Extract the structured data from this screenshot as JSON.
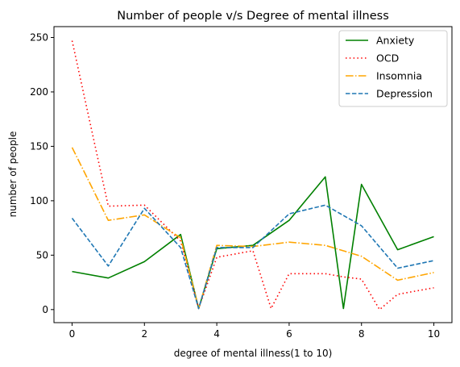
{
  "chart_data": {
    "type": "line",
    "title": "Number of people v/s Degree of mental illness",
    "xlabel": "degree of mental illness(1 to 10)",
    "ylabel": "number of people",
    "xlim": [
      -0.5,
      10.5
    ],
    "ylim": [
      -12,
      260
    ],
    "xticks": [
      0,
      2,
      4,
      6,
      8,
      10
    ],
    "yticks": [
      0,
      50,
      100,
      150,
      200,
      250
    ],
    "grid": false,
    "legend_position": "top-right",
    "x": [
      0,
      1,
      2,
      3,
      3.5,
      4,
      5,
      5.5,
      6,
      7,
      7.5,
      8,
      8.5,
      9,
      10
    ],
    "series": [
      {
        "name": "Anxiety",
        "color": "#008000",
        "style": "solid",
        "values": [
          35,
          29,
          44,
          69,
          1,
          56,
          59,
          null,
          82,
          122,
          1,
          115,
          null,
          55,
          67
        ]
      },
      {
        "name": "OCD",
        "color": "#ff0000",
        "style": "dotted",
        "values": [
          247,
          95,
          96,
          63,
          1,
          48,
          54,
          1,
          33,
          33,
          30,
          28,
          0,
          14,
          20
        ]
      },
      {
        "name": "Insomnia",
        "color": "#ffa500",
        "style": "dashdot",
        "values": [
          149,
          82,
          87,
          66,
          1,
          59,
          58,
          null,
          62,
          59,
          null,
          49,
          null,
          27,
          34
        ]
      },
      {
        "name": "Depression",
        "color": "#1f77b4",
        "style": "dashed",
        "values": [
          84,
          40,
          93,
          57,
          1,
          57,
          57,
          null,
          88,
          96,
          null,
          77,
          null,
          38,
          45
        ]
      }
    ]
  }
}
